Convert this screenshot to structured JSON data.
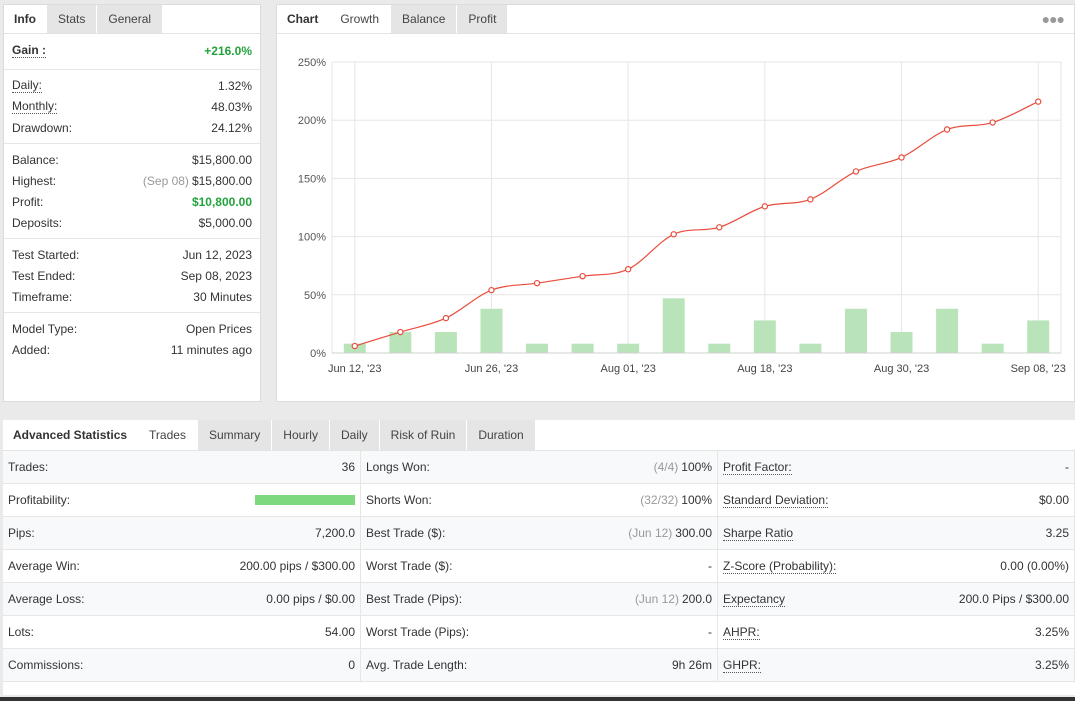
{
  "stats": {
    "tabs": [
      "Info",
      "Stats",
      "General"
    ],
    "gain": {
      "label": "Gain :",
      "value": "+216.0%"
    },
    "group1": [
      {
        "label": "Daily:",
        "value": "1.32%",
        "u": true
      },
      {
        "label": "Monthly:",
        "value": "48.03%",
        "u": true
      },
      {
        "label": "Drawdown:",
        "value": "24.12%",
        "u": false
      }
    ],
    "group2": [
      {
        "label": "Balance:",
        "value": "$15,800.00"
      },
      {
        "label": "Highest:",
        "note": "(Sep 08)",
        "value": "$15,800.00"
      },
      {
        "label": "Profit:",
        "value": "$10,800.00",
        "green": true
      },
      {
        "label": "Deposits:",
        "value": "$5,000.00"
      }
    ],
    "group3": [
      {
        "label": "Test Started:",
        "value": "Jun 12, 2023"
      },
      {
        "label": "Test Ended:",
        "value": "Sep 08, 2023"
      },
      {
        "label": "Timeframe:",
        "value": "30 Minutes"
      }
    ],
    "group4": [
      {
        "label": "Model Type:",
        "value": "Open Prices"
      },
      {
        "label": "Added:",
        "value": "11 minutes ago"
      }
    ]
  },
  "chart_tabs": [
    "Chart",
    "Growth",
    "Balance",
    "Profit"
  ],
  "chart_data": {
    "type": "line",
    "y_ticks": [
      "250%",
      "200%",
      "150%",
      "100%",
      "50%",
      "0%"
    ],
    "ylim": [
      0,
      250
    ],
    "x_tick_labels": [
      "Jun 12, '23",
      "Jun 26, '23",
      "Aug 01, '23",
      "Aug 18, '23",
      "Aug 30, '23",
      "Sep 08, '23"
    ],
    "line_values": [
      6,
      18,
      30,
      54,
      60,
      66,
      72,
      102,
      108,
      126,
      132,
      156,
      168,
      192,
      198,
      216
    ],
    "bar_values": [
      8,
      18,
      18,
      38,
      8,
      8,
      8,
      47,
      8,
      28,
      8,
      38,
      18,
      38,
      8,
      28
    ],
    "line_color": "#e84c3d",
    "bar_color": "#b9e4b9",
    "grid": true
  },
  "adv": {
    "tabs": [
      "Advanced Statistics",
      "Trades",
      "Summary",
      "Hourly",
      "Daily",
      "Risk of Ruin",
      "Duration"
    ],
    "rows": [
      [
        {
          "l": "Trades:",
          "v": "36"
        },
        {
          "l": "Longs Won:",
          "n": "(4/4)",
          "v": "100%"
        },
        {
          "l": "Profit Factor:",
          "v": "-",
          "u": true
        }
      ],
      [
        {
          "l": "Profitability:",
          "bar": true,
          "v": ""
        },
        {
          "l": "Shorts Won:",
          "n": "(32/32)",
          "v": "100%"
        },
        {
          "l": "Standard Deviation:",
          "v": "$0.00",
          "u": true
        }
      ],
      [
        {
          "l": "Pips:",
          "v": "7,200.0"
        },
        {
          "l": "Best Trade ($):",
          "n": "(Jun 12)",
          "v": "300.00"
        },
        {
          "l": "Sharpe Ratio",
          "v": "3.25",
          "u": true
        }
      ],
      [
        {
          "l": "Average Win:",
          "v": "200.00 pips / $300.00"
        },
        {
          "l": "Worst Trade ($):",
          "v": "-"
        },
        {
          "l": "Z-Score (Probability):",
          "v": "0.00 (0.00%)",
          "u": true
        }
      ],
      [
        {
          "l": "Average Loss:",
          "v": "0.00 pips / $0.00"
        },
        {
          "l": "Best Trade (Pips):",
          "n": "(Jun 12)",
          "v": "200.0"
        },
        {
          "l": "Expectancy",
          "v": "200.0 Pips / $300.00",
          "u": true
        }
      ],
      [
        {
          "l": "Lots:",
          "v": "54.00"
        },
        {
          "l": "Worst Trade (Pips):",
          "v": "-"
        },
        {
          "l": "AHPR:",
          "v": "3.25%",
          "u": true
        }
      ],
      [
        {
          "l": "Commissions:",
          "v": "0"
        },
        {
          "l": "Avg. Trade Length:",
          "v": "9h 26m"
        },
        {
          "l": "GHPR:",
          "v": "3.25%",
          "u": true
        }
      ]
    ]
  }
}
